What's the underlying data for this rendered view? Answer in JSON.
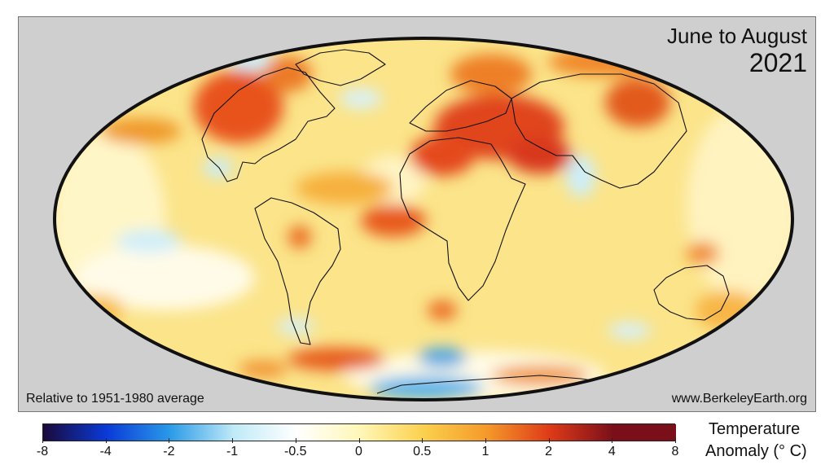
{
  "title": {
    "season": "June to August",
    "year": "2021"
  },
  "footnotes": {
    "baseline": "Relative to 1951-1980 average",
    "source": "www.BerkeleyEarth.org"
  },
  "legend": {
    "title_line1": "Temperature",
    "title_line2": "Anomaly (° C)",
    "ticks": [
      "-8",
      "-4",
      "-2",
      "-1",
      "-0.5",
      "0",
      "0.5",
      "1",
      "2",
      "4",
      "8"
    ],
    "colors": [
      "#1a0a3a",
      "#0a3ad8",
      "#2a9ae8",
      "#bfeaf7",
      "#ffffff",
      "#fff7b8",
      "#fbd14d",
      "#f59a2a",
      "#de3a18",
      "#7a0f1a"
    ]
  },
  "map": {
    "projection": "Mollweide",
    "ocean_base_color": "#fbe48a",
    "background_color": "#cfcfcf"
  }
}
